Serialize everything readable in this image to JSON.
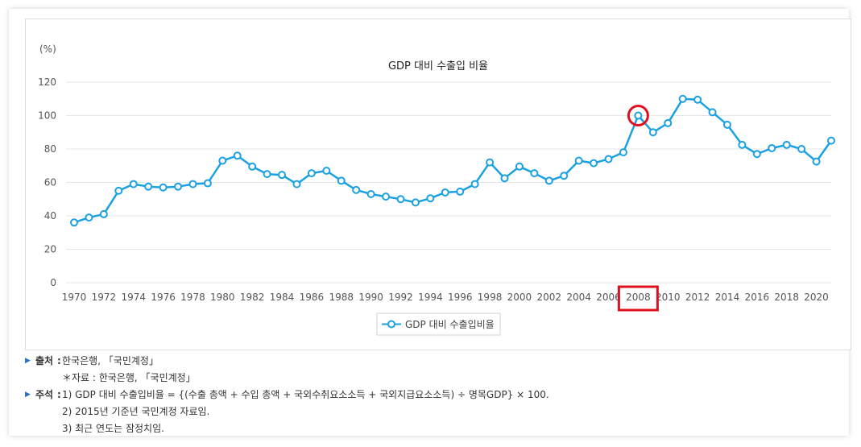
{
  "chart_data": {
    "type": "line",
    "title": "GDP 대비 수출입 비율",
    "unit_label": "(%)",
    "ylim": [
      0,
      120
    ],
    "yticks": [
      0,
      20,
      40,
      60,
      80,
      100,
      120
    ],
    "xticks": [
      1970,
      1972,
      1974,
      1976,
      1978,
      1980,
      1982,
      1984,
      1986,
      1988,
      1990,
      1992,
      1994,
      1996,
      1998,
      2000,
      2002,
      2004,
      2006,
      2008,
      2010,
      2012,
      2014,
      2016,
      2018,
      2020
    ],
    "x": [
      1970,
      1971,
      1972,
      1973,
      1974,
      1975,
      1976,
      1977,
      1978,
      1979,
      1980,
      1981,
      1982,
      1983,
      1984,
      1985,
      1986,
      1987,
      1988,
      1989,
      1990,
      1991,
      1992,
      1993,
      1994,
      1995,
      1996,
      1997,
      1998,
      1999,
      2000,
      2001,
      2002,
      2003,
      2004,
      2005,
      2006,
      2007,
      2008,
      2009,
      2010,
      2011,
      2012,
      2013,
      2014,
      2015,
      2016,
      2017,
      2018,
      2019,
      2020,
      2021
    ],
    "series": [
      {
        "name": "GDP 대비 수출입비율",
        "color": "#1ba1e2",
        "values": [
          36,
          39,
          41,
          55,
          59,
          57.5,
          57,
          57.5,
          59,
          59.5,
          73,
          76,
          69.5,
          65,
          64.5,
          59,
          65.5,
          67,
          61,
          55.5,
          53,
          51.5,
          50,
          48,
          50.5,
          54,
          54.5,
          59,
          72,
          62.5,
          69.5,
          65.5,
          61,
          64,
          73,
          71.5,
          74,
          78,
          100,
          90,
          95.5,
          110,
          109.5,
          102,
          94.5,
          82.5,
          77,
          80.5,
          82.5,
          80,
          72.5,
          85
        ]
      }
    ],
    "grid": true,
    "legend": "bottom-center",
    "highlight": {
      "point_year": 2008,
      "tick_label": "2008",
      "color": "#e0101e"
    }
  },
  "notes": {
    "source_label": "출처",
    "source_text": "한국은행, 「국민계정」",
    "source_sub": "＊자료 : 한국은행, 「국민계정」",
    "remark_label": "주석",
    "remarks": [
      "1) GDP 대비 수출입비율 = {(수출 총액 + 수입 총액 + 국외수취요소소득 + 국외지급요소소득) ÷ 명목GDP} × 100.",
      "2) 2015년 기준년 국민계정 자료임.",
      "3) 최근 연도는 잠정치임."
    ],
    "bullet_icon": "triangle-right-icon"
  }
}
